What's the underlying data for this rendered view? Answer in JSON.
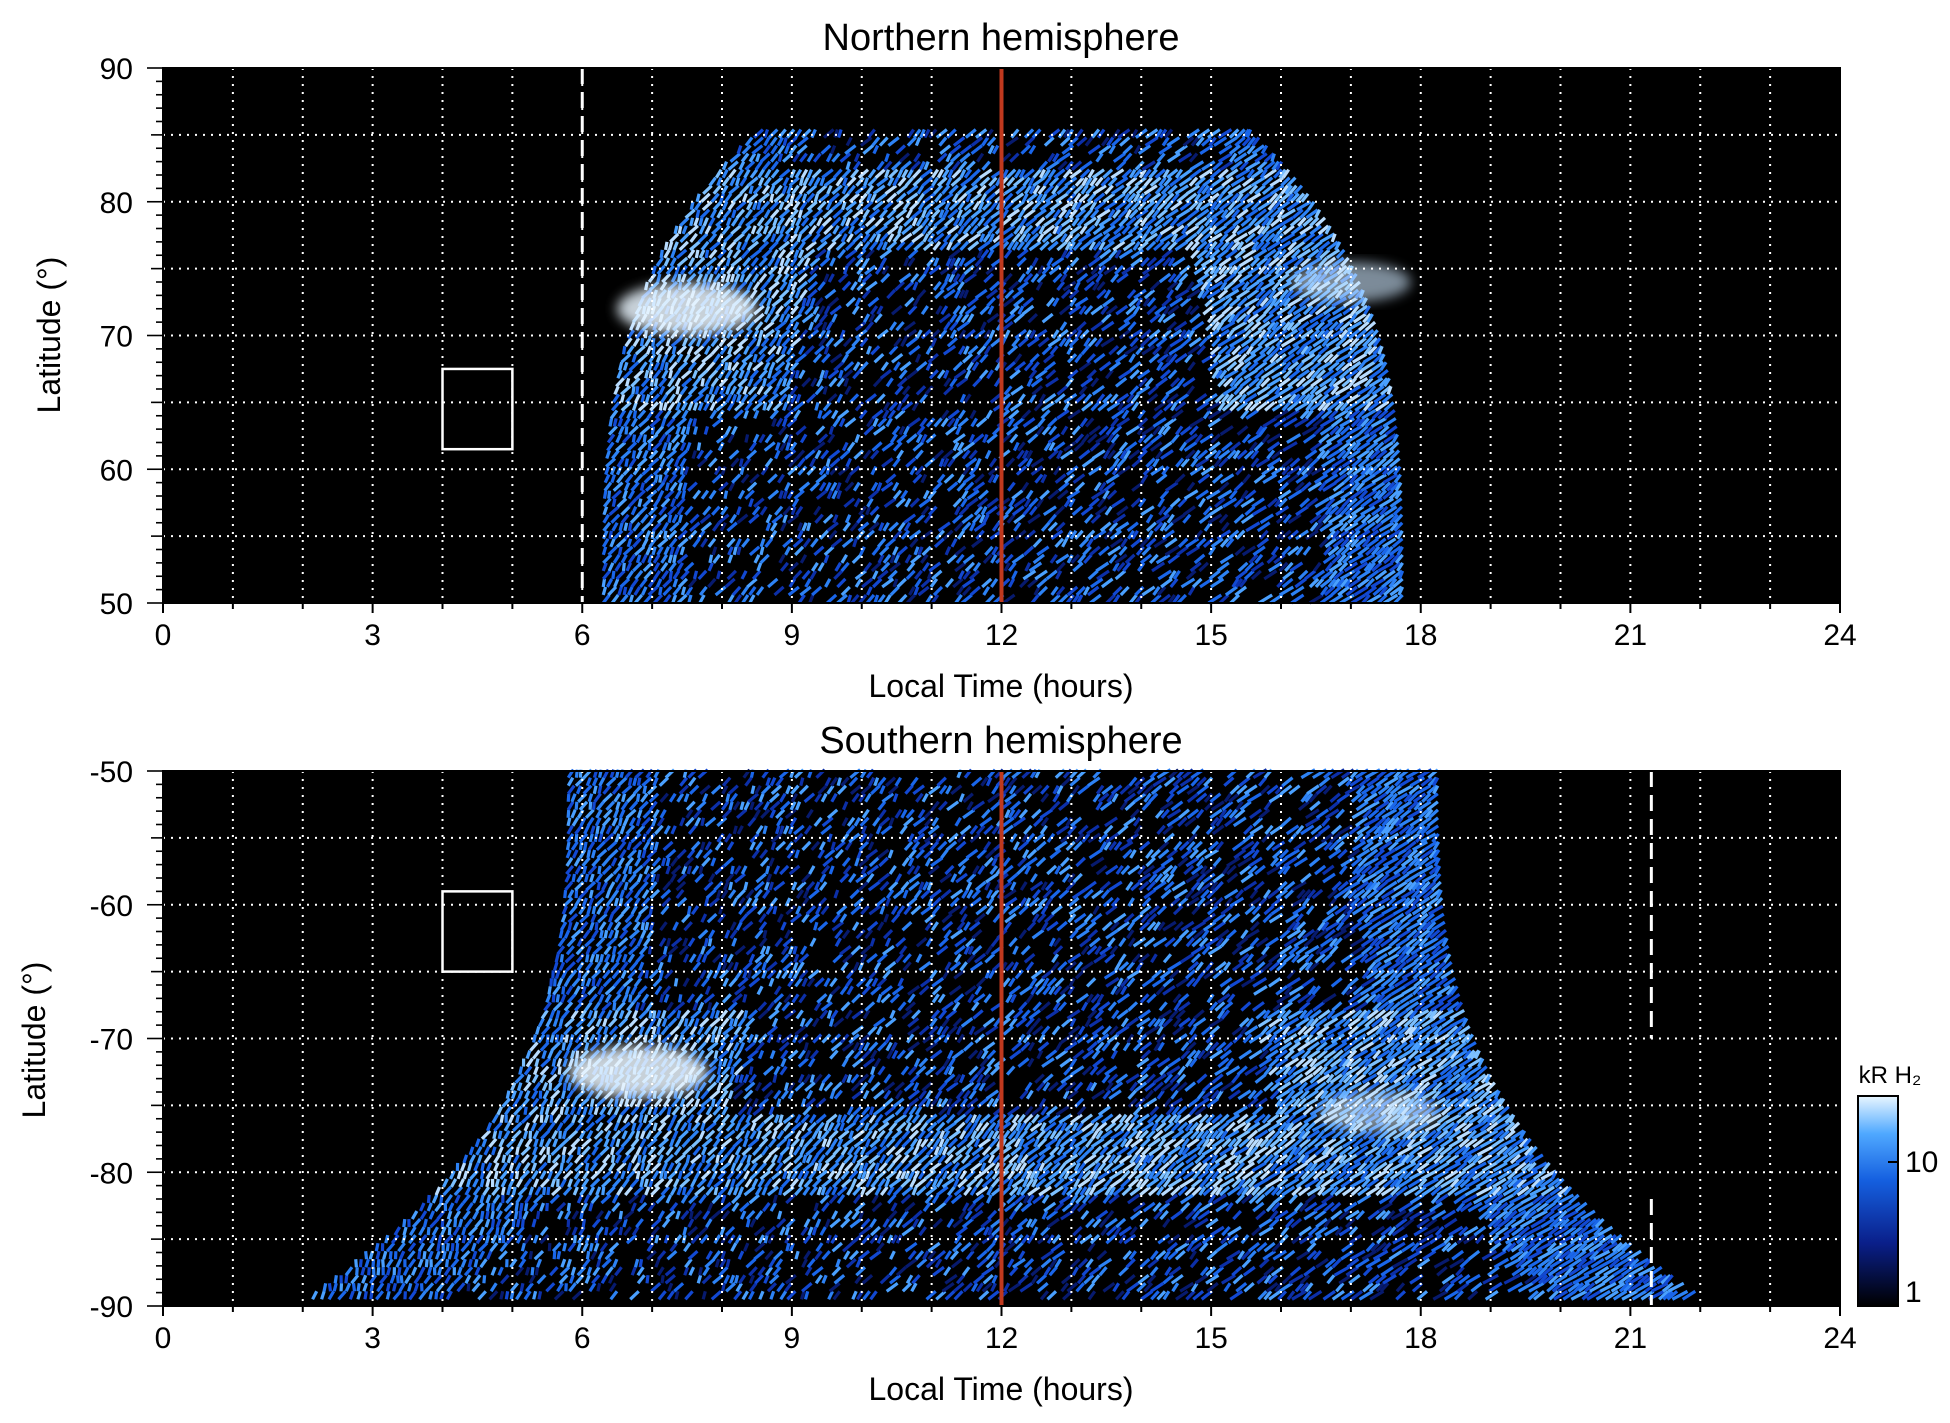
{
  "chart_data": [
    {
      "type": "heatmap",
      "title": "Northern hemisphere",
      "xlabel": "Local Time (hours)",
      "ylabel": "Latitude (°)",
      "xlim": [
        0,
        24
      ],
      "ylim": [
        50,
        90
      ],
      "xticks": [
        "0",
        "3",
        "6",
        "9",
        "12",
        "15",
        "18",
        "21",
        "24"
      ],
      "yticks": [
        "50",
        "60",
        "70",
        "80",
        "90"
      ],
      "grid": true,
      "emission_region": {
        "lt_start_at_min_lat": 6.3,
        "lt_end_at_min_lat": 17.7,
        "max_lat": 85
      },
      "auroral_oval": {
        "lat_range": [
          64,
          82
        ],
        "bright_spot": {
          "lt": 7.5,
          "lat": 72
        }
      },
      "noon_line": {
        "lt": 12,
        "color": "#c0391e"
      },
      "dashed_line": {
        "lt": 6.0
      },
      "box": {
        "lt": [
          4.0,
          5.0
        ],
        "lat": [
          61.5,
          67.5
        ]
      }
    },
    {
      "type": "heatmap",
      "title": "Southern hemisphere",
      "xlabel": "Local Time (hours)",
      "ylabel": "Latitude (°)",
      "xlim": [
        0,
        24
      ],
      "ylim": [
        -90,
        -50
      ],
      "xticks": [
        "0",
        "3",
        "6",
        "9",
        "12",
        "15",
        "18",
        "21",
        "24"
      ],
      "yticks": [
        "-90",
        "-80",
        "-70",
        "-60",
        "-50"
      ],
      "grid": true,
      "emission_region": {
        "lt_start_at_max_lat": 6.0,
        "lt_end_at_max_lat": 18.3,
        "min_lat": -89.5
      },
      "auroral_oval": {
        "lat_range": [
          -82,
          -68
        ],
        "bright_spot": {
          "lt": 6.8,
          "lat": -72.5
        }
      },
      "noon_line": {
        "lt": 12,
        "color": "#c0391e"
      },
      "dashed_line": {
        "lt": 21.3
      },
      "box": {
        "lt": [
          4.0,
          5.0
        ],
        "lat": [
          -65,
          -59
        ]
      }
    }
  ],
  "colorbar": {
    "label": "kR H₂",
    "ticks": [
      "1",
      "10"
    ],
    "scale": "log",
    "colors": [
      "#000000",
      "#0a1f8a",
      "#1560e0",
      "#4fa8ff",
      "#e8f6ff"
    ]
  }
}
